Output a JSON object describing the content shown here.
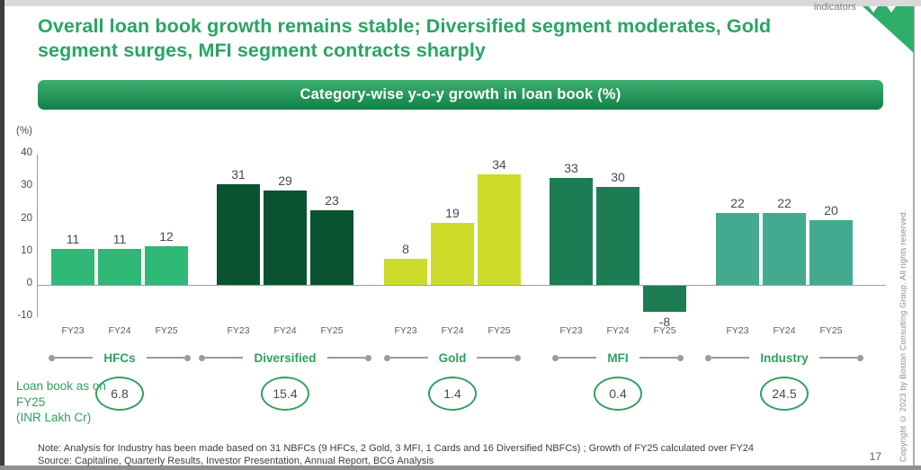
{
  "frame": {
    "indicators_label": "indicators",
    "page_number": "17",
    "copyright_text": "Copyright © 2023 by Boston Consulting Group. All rights reserved.",
    "accent_green": "#2fa05e"
  },
  "header": {
    "title": "Overall loan book growth remains stable; Diversified segment moderates, Gold\nsegment surges, MFI segment contracts sharply"
  },
  "banner": {
    "label": "Category-wise y-o-y growth in loan book (%)",
    "gradient_top": "#3cae6e",
    "gradient_bottom": "#128148"
  },
  "chart_data": {
    "type": "bar",
    "title": "Category-wise y-o-y growth in loan book (%)",
    "axis_unit_label": "(%)",
    "categories": [
      "FY23",
      "FY24",
      "FY25"
    ],
    "y_ticks": [
      40,
      30,
      20,
      10,
      0,
      -10
    ],
    "ylim": [
      -10,
      40
    ],
    "grid": false,
    "legend": "none",
    "groups": [
      {
        "name": "HFCs",
        "color": "#2fb876",
        "values": [
          11,
          11,
          12
        ],
        "loan_book_fy25": "6.8"
      },
      {
        "name": "Diversified",
        "color": "#0a5331",
        "values": [
          31,
          29,
          23
        ],
        "loan_book_fy25": "15.4"
      },
      {
        "name": "Gold",
        "color": "#cddc2b",
        "values": [
          8,
          19,
          34
        ],
        "loan_book_fy25": "1.4"
      },
      {
        "name": "MFI",
        "color": "#1e7c55",
        "values": [
          33,
          30,
          -8
        ],
        "loan_book_fy25": "0.4"
      },
      {
        "name": "Industry",
        "color": "#43aa8f",
        "values": [
          22,
          22,
          20
        ],
        "loan_book_fy25": "24.5"
      }
    ]
  },
  "callout": {
    "label": "Loan book as on\nFY25\n(INR Lakh Cr)"
  },
  "footer": {
    "note": "Note: Analysis for Industry has been made based on 31 NBFCs (9 HFCs, 2 Gold, 3 MFI, 1 Cards and 16 Diversified NBFCs) ; Growth of FY25 calculated over FY24",
    "source": "Source: Capitaline, Quarterly Results, Investor Presentation, Annual Report, BCG Analysis"
  }
}
